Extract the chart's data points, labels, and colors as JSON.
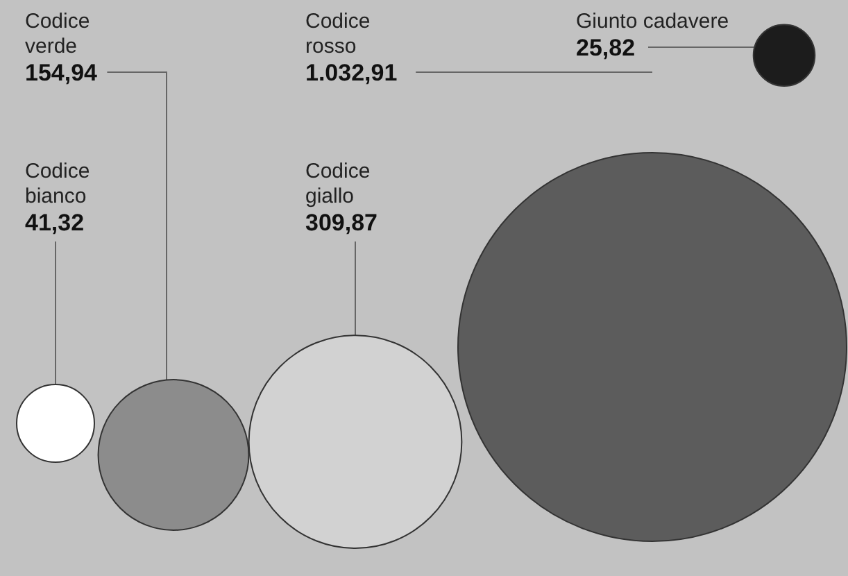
{
  "chart_data": {
    "type": "other",
    "categories": [
      "Codice\nbianco",
      "Codice\nverde",
      "Codice\ngiallo",
      "Codice\nrosso",
      "Giunto cadavere"
    ],
    "values": [
      41.32,
      154.94,
      309.87,
      1032.91,
      25.82
    ],
    "value_labels": [
      "41,32",
      "154,94",
      "309,87",
      "1.032,91",
      "25,82"
    ],
    "colors": [
      "#ffffff",
      "#8c8c8c",
      "#d2d2d2",
      "#5c5c5c",
      "#1c1c1c"
    ]
  }
}
